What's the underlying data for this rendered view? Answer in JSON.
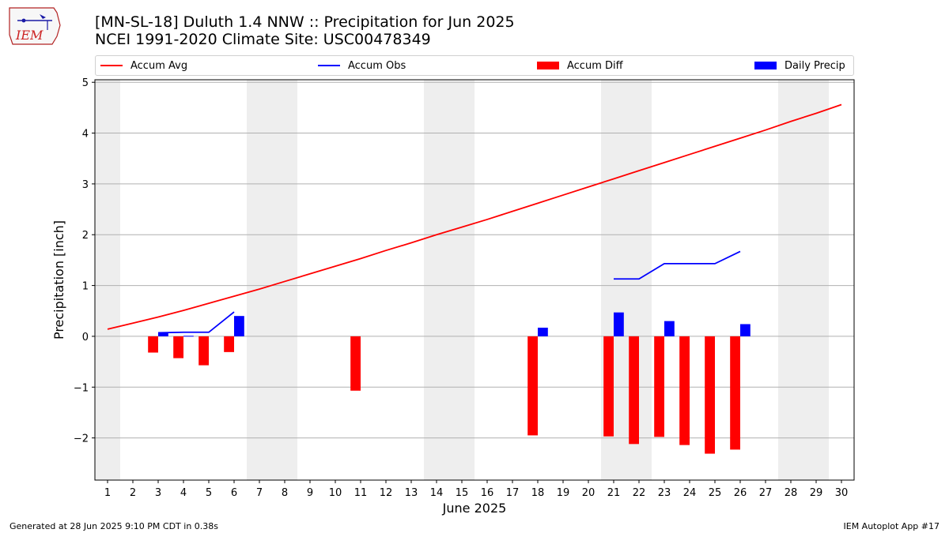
{
  "header": {
    "title_line1": "[MN-SL-18] Duluth 1.4 NNW :: Precipitation for Jun 2025",
    "title_line2": "NCEI 1991-2020 Climate Site: USC00478349",
    "logo_text": "IEM"
  },
  "footer": {
    "generated": "Generated at 28 Jun 2025 9:10 PM CDT in 0.38s",
    "app": "IEM Autoplot App #17"
  },
  "colors": {
    "accum_avg": "#ff0000",
    "accum_obs": "#0000ff",
    "accum_diff": "#ff0000",
    "daily_precip": "#0000ff",
    "weekend_band": "#eeeeee",
    "grid": "#b0b0b0"
  },
  "chart_data": {
    "type": "bar",
    "xlabel": "June 2025",
    "ylabel": "Precipitation [inch]",
    "xlim": [
      0.5,
      30.5
    ],
    "ylim": [
      -2.83,
      5.05
    ],
    "x_ticks": [
      1,
      2,
      3,
      4,
      5,
      6,
      7,
      8,
      9,
      10,
      11,
      12,
      13,
      14,
      15,
      16,
      17,
      18,
      19,
      20,
      21,
      22,
      23,
      24,
      25,
      26,
      27,
      28,
      29,
      30
    ],
    "y_ticks": [
      -2,
      -1,
      0,
      1,
      2,
      3,
      4,
      5
    ],
    "y_tick_labels": [
      "−2",
      "−1",
      "0",
      "1",
      "2",
      "3",
      "4",
      "5"
    ],
    "grid": "horizontal",
    "legend_position": "top",
    "weekend_days": [
      1,
      7,
      8,
      14,
      15,
      21,
      22,
      28,
      29
    ],
    "legend": [
      "Accum Avg",
      "Accum Obs",
      "Accum Diff",
      "Daily Precip"
    ],
    "series": [
      {
        "name": "Accum Avg",
        "kind": "line",
        "x": [
          1,
          2,
          3,
          4,
          5,
          6,
          7,
          8,
          9,
          10,
          11,
          12,
          13,
          14,
          15,
          16,
          17,
          18,
          19,
          20,
          21,
          22,
          23,
          24,
          25,
          26,
          27,
          28,
          29,
          30
        ],
        "values": [
          0.14,
          0.26,
          0.38,
          0.51,
          0.65,
          0.79,
          0.93,
          1.08,
          1.23,
          1.38,
          1.53,
          1.69,
          1.84,
          2.0,
          2.15,
          2.3,
          2.46,
          2.62,
          2.78,
          2.94,
          3.1,
          3.26,
          3.42,
          3.58,
          3.74,
          3.9,
          4.06,
          4.23,
          4.39,
          4.56
        ]
      },
      {
        "name": "Accum Obs",
        "kind": "line",
        "segments": [
          {
            "x": [
              3,
              4,
              5,
              6
            ],
            "values": [
              0.07,
              0.08,
              0.08,
              0.48
            ]
          },
          {
            "x": [
              21,
              22,
              23,
              24,
              25,
              26
            ],
            "values": [
              1.13,
              1.13,
              1.43,
              1.43,
              1.43,
              1.67
            ]
          }
        ]
      },
      {
        "name": "Accum Diff",
        "kind": "bar",
        "x": [
          3,
          4,
          5,
          6,
          11,
          18,
          21,
          22,
          23,
          24,
          25,
          26
        ],
        "values": [
          -0.32,
          -0.43,
          -0.57,
          -0.31,
          -1.07,
          -1.95,
          -1.97,
          -2.12,
          -1.98,
          -2.14,
          -2.31,
          -2.23
        ]
      },
      {
        "name": "Daily Precip",
        "kind": "bar",
        "x": [
          3,
          4,
          6,
          18,
          21,
          23,
          26
        ],
        "values": [
          0.07,
          0.01,
          0.4,
          0.17,
          0.47,
          0.3,
          0.24
        ]
      }
    ]
  }
}
